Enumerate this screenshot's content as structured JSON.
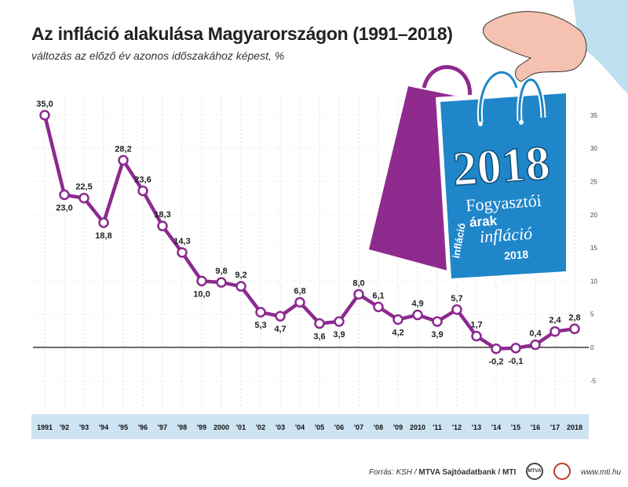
{
  "title": "Az infláció alakulása Magyarországon (1991–2018)",
  "subtitle": "változás az előző év azonos időszakához képest, %",
  "source_prefix": "Forrás: KSH /",
  "source_bold": "MTVA Sajtóadatbank / MTI",
  "website": "www.mti.hu",
  "logo_text": "MTVA",
  "bag": {
    "year": "2018",
    "line1": "Fogyasztói",
    "word_arak": "árak",
    "word_inflacio_vertical": "infláció",
    "word_inflacio": "infláció",
    "word_2018_small": "2018"
  },
  "colors": {
    "line": "#8b2a8f",
    "band": "#cfe4f3",
    "bag_front": "#1f86c9",
    "bag_back": "#8f2a8f",
    "skin": "#f5c1b0",
    "sleeve": "#bfe0ef"
  },
  "chart_data": {
    "type": "line",
    "categories": [
      "1991",
      "'92",
      "'93",
      "'94",
      "'95",
      "'96",
      "'97",
      "'98",
      "'99",
      "2000",
      "'01",
      "'02",
      "'03",
      "'04",
      "'05",
      "'06",
      "'07",
      "'08",
      "'09",
      "2010",
      "'11",
      "'12",
      "'13",
      "'14",
      "'15",
      "'16",
      "'17",
      "2018"
    ],
    "values": [
      35.0,
      23.0,
      22.5,
      18.8,
      28.2,
      23.6,
      18.3,
      14.3,
      10.0,
      9.8,
      9.2,
      5.3,
      4.7,
      6.8,
      3.6,
      3.9,
      8.0,
      6.1,
      4.2,
      4.9,
      3.9,
      5.7,
      1.7,
      -0.2,
      -0.1,
      0.4,
      2.4,
      2.8
    ],
    "labels": [
      "35,0",
      "23,0",
      "22,5",
      "18,8",
      "28,2",
      "23,6",
      "18,3",
      "14,3",
      "10,0",
      "9,8",
      "9,2",
      "5,3",
      "4,7",
      "6,8",
      "3,6",
      "3,9",
      "8,0",
      "6,1",
      "4,2",
      "4,9",
      "3,9",
      "5,7",
      "1,7",
      "-0,2",
      "-0,1",
      "0,4",
      "2,4",
      "2,8"
    ],
    "label_pos": [
      "above",
      "below",
      "above",
      "below",
      "above",
      "above",
      "above",
      "above",
      "below",
      "above",
      "above",
      "below",
      "below",
      "above",
      "below",
      "below",
      "above",
      "above",
      "below",
      "above",
      "below",
      "above",
      "above",
      "below",
      "below",
      "above",
      "above",
      "above"
    ],
    "yticks": [
      -5,
      0,
      5,
      10,
      15,
      20,
      25,
      30,
      35
    ],
    "ylim": [
      -6,
      36
    ],
    "grid": true,
    "xlabel": "",
    "ylabel": ""
  }
}
